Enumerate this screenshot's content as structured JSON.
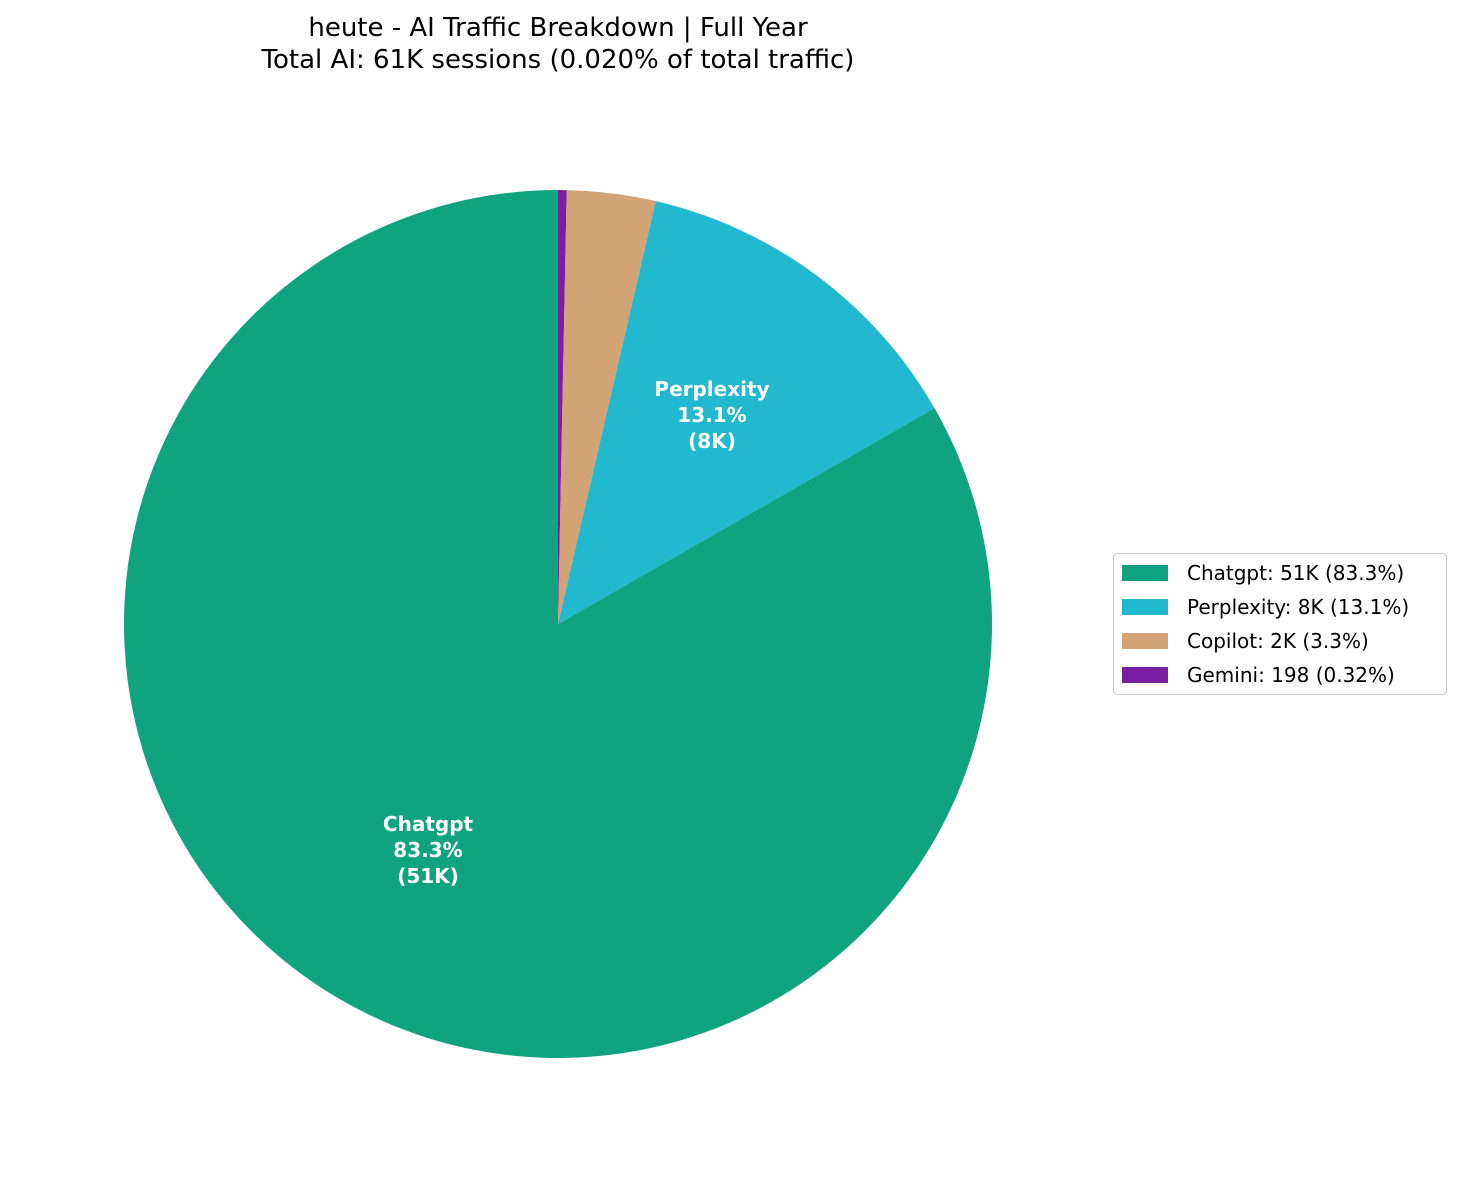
{
  "title": {
    "line1": "heute - AI Traffic Breakdown | Full Year",
    "line2": "Total AI: 61K sessions (0.020% of total traffic)"
  },
  "chart_data": {
    "type": "pie",
    "title": "heute - AI Traffic Breakdown | Full Year\nTotal AI: 61K sessions (0.020% of total traffic)",
    "total_sessions_label": "61K",
    "start_angle_deg": 90,
    "direction": "clockwise",
    "slices": [
      {
        "name": "Gemini",
        "value": 198,
        "value_label": "198",
        "percent": 0.32,
        "color": "#7b1fa2",
        "label": null
      },
      {
        "name": "Copilot",
        "value": 2000,
        "value_label": "2K",
        "percent": 3.3,
        "color": "#d2a375",
        "label": null
      },
      {
        "name": "Perplexity",
        "value": 8000,
        "value_label": "8K",
        "percent": 13.1,
        "color": "#22b8ce",
        "label": {
          "name": "Perplexity",
          "pct": "13.1%",
          "val": "(8K)"
        }
      },
      {
        "name": "Chatgpt",
        "value": 51000,
        "value_label": "51K",
        "percent": 83.3,
        "color": "#10a37f",
        "label": {
          "name": "Chatgpt",
          "pct": "83.3%",
          "val": "(51K)"
        }
      }
    ],
    "legend": {
      "position": "right",
      "entries": [
        "Chatgpt: 51K (83.3%)",
        "Perplexity: 8K (13.1%)",
        "Copilot: 2K (3.3%)",
        "Gemini: 198 (0.32%)"
      ]
    }
  },
  "legend": {
    "items": [
      {
        "text": "Chatgpt: 51K (83.3%)",
        "color": "#10a37f"
      },
      {
        "text": "Perplexity: 8K (13.1%)",
        "color": "#22b8ce"
      },
      {
        "text": "Copilot: 2K (3.3%)",
        "color": "#d2a375"
      },
      {
        "text": "Gemini: 198 (0.32%)",
        "color": "#7b1fa2"
      }
    ]
  }
}
